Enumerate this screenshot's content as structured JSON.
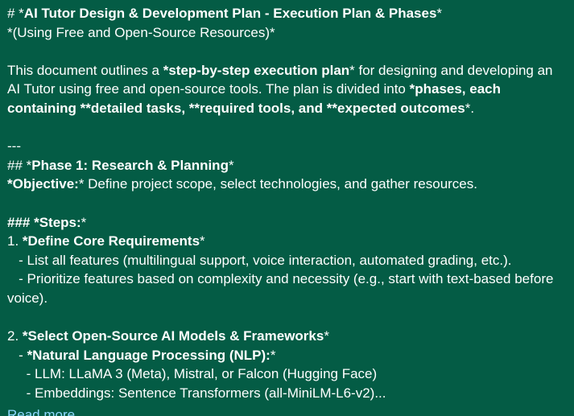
{
  "message": {
    "title": {
      "pre": "# *",
      "bold": "AI Tutor Design & Development Plan - Execution Plan & Phases",
      "post": "*"
    },
    "subtitle": "*(Using Free and Open-Source Resources)*",
    "intro": {
      "t1": "This document outlines a ",
      "b1": "*step-by-step execution plan",
      "t2": "* for designing and developing an AI Tutor using free and open-source tools. The plan is divided into ",
      "b2": "*phases, each containing **detailed tasks, **required tools, and **expected outcomes",
      "t3": "*."
    },
    "divider": "---",
    "phase1": {
      "heading_pre": "## *",
      "heading": "Phase 1: Research & Planning",
      "heading_post": "*",
      "objective_label": "*Objective:",
      "objective_text": "* Define project scope, select technologies, and gather resources.",
      "steps_label": "### *Steps:",
      "steps_post": "*"
    },
    "step1": {
      "num": "1. ",
      "title": "*Define Core Requirements",
      "title_post": "*",
      "item1": "   - List all features (multilingual support, voice interaction, automated grading, etc.).",
      "item2": "   - Prioritize features based on complexity and necessity (e.g., start with text-based before voice)."
    },
    "step2": {
      "num": "2. ",
      "title": "*Select Open-Source AI Models & Frameworks",
      "title_post": "*",
      "sub_pre": "   - ",
      "sub_bold": "*Natural Language Processing (NLP):",
      "sub_post": "*",
      "item1": "     - LLM: LLaMA 3 (Meta), Mistral, or Falcon (Hugging Face)",
      "item2": "     - Embeddings: Sentence Transformers (all-MiniLM-L6-v2)..."
    },
    "read_more": "Read more"
  }
}
